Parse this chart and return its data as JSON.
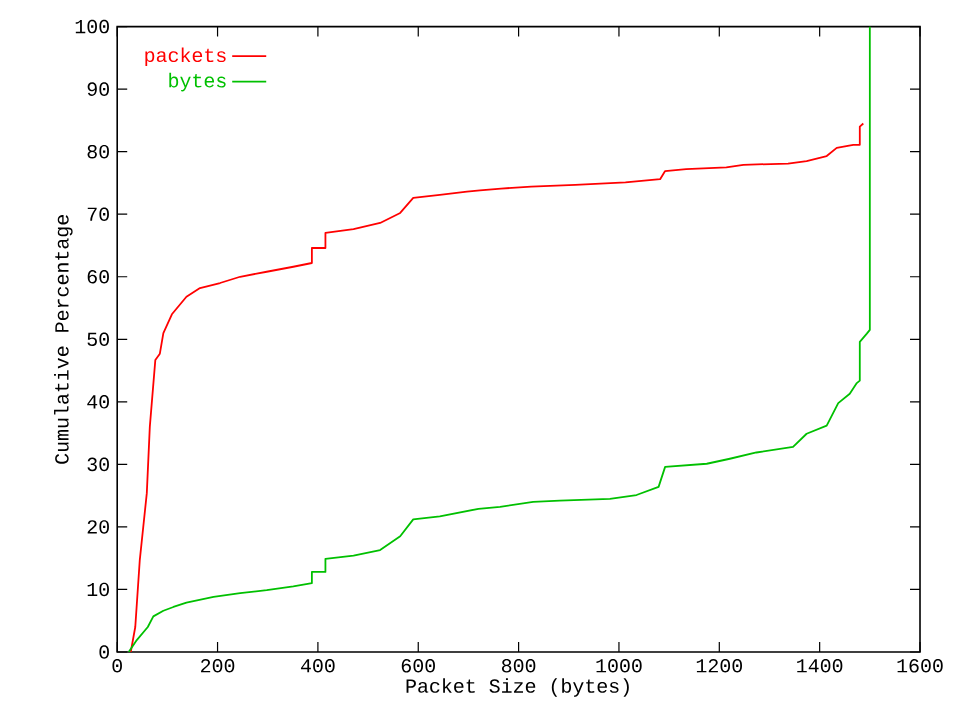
{
  "chart_data": {
    "type": "line",
    "xlabel": "Packet Size (bytes)",
    "ylabel": "Cumulative Percentage",
    "xlim": [
      0,
      1600
    ],
    "ylim": [
      0,
      100
    ],
    "xticks": [
      0,
      200,
      400,
      600,
      800,
      1000,
      1200,
      1400,
      1600
    ],
    "yticks": [
      0,
      10,
      20,
      30,
      40,
      50,
      60,
      70,
      80,
      90,
      100
    ],
    "legend": "top left",
    "series": [
      {
        "name": "packets",
        "color": "#ff0000",
        "x": [
          27,
          36,
          45,
          59,
          65,
          76,
          85,
          92,
          109,
          138,
          165,
          205,
          245,
          298,
          351,
          388,
          388,
          415,
          415,
          471,
          524,
          564,
          590,
          643,
          697,
          723,
          765,
          825,
          913,
          1013,
          1082,
          1092,
          1134,
          1214,
          1248,
          1337,
          1374,
          1414,
          1434,
          1467,
          1480,
          1480,
          1487
        ],
        "values": [
          0,
          4,
          14.7,
          25.4,
          36,
          46.7,
          47.7,
          51,
          54,
          56.8,
          58.2,
          59,
          60,
          60.8,
          61.6,
          62.2,
          64.6,
          64.6,
          67,
          67.6,
          68.6,
          70.2,
          72.6,
          73.1,
          73.6,
          73.8,
          74.1,
          74.4,
          74.7,
          75.1,
          75.6,
          76.9,
          77.2,
          77.5,
          77.9,
          78.1,
          78.5,
          79.3,
          80.6,
          81.1,
          81.1,
          84,
          84.5
        ]
      },
      {
        "name": "bytes",
        "color": "#00c000",
        "x": [
          23,
          39,
          61,
          72,
          92,
          112,
          138,
          192,
          245,
          298,
          351,
          388,
          388,
          415,
          415,
          471,
          524,
          564,
          590,
          643,
          720,
          763,
          829,
          882,
          982,
          1035,
          1079,
          1092,
          1175,
          1221,
          1274,
          1347,
          1374,
          1414,
          1437,
          1460,
          1474,
          1480,
          1480,
          1494,
          1500,
          1500
        ],
        "values": [
          0,
          1.9,
          4,
          5.7,
          6.6,
          7.2,
          7.9,
          8.8,
          9.4,
          9.9,
          10.5,
          11,
          12.8,
          12.8,
          14.9,
          15.4,
          16.3,
          18.5,
          21.2,
          21.7,
          22.9,
          23.2,
          24,
          24.2,
          24.5,
          25.1,
          26.4,
          29.6,
          30.1,
          30.9,
          31.9,
          32.8,
          34.9,
          36.2,
          39.8,
          41.3,
          43,
          43.4,
          49.6,
          50.9,
          51.5,
          100
        ]
      }
    ]
  }
}
